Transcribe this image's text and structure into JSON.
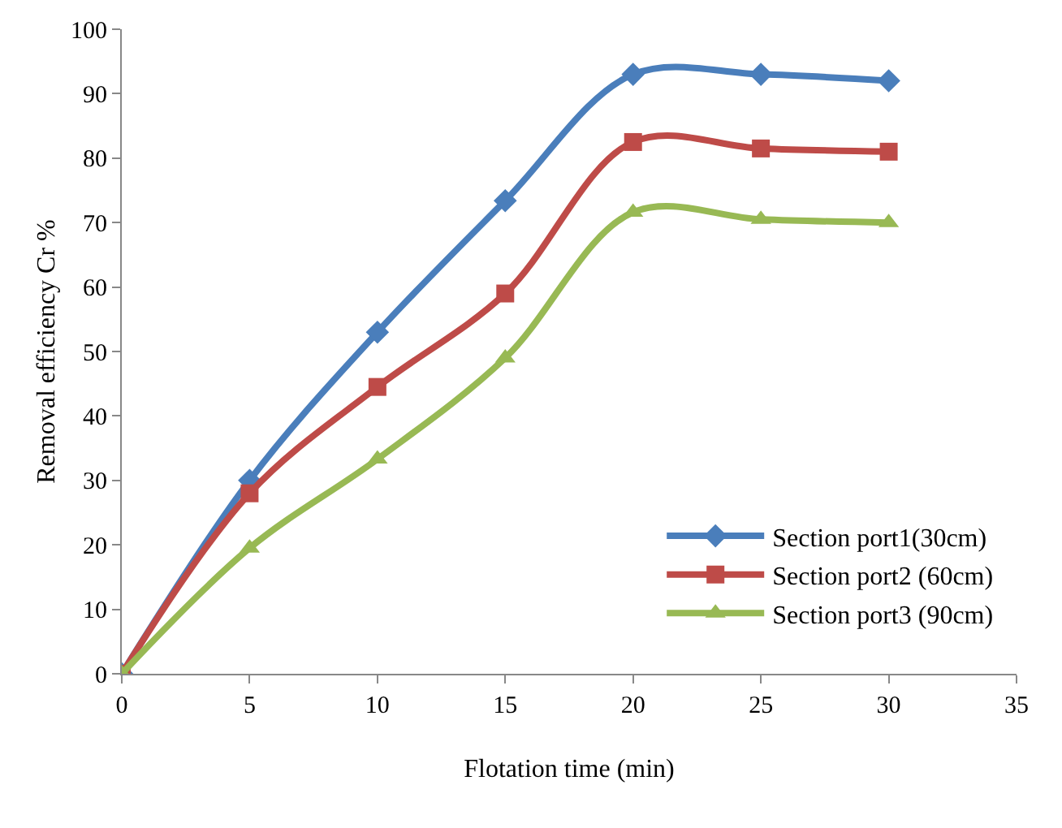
{
  "chart_data": {
    "type": "line",
    "xlabel": "Flotation time (min)",
    "ylabel": "Removal efficiency Cr %",
    "x": [
      0,
      5,
      10,
      15,
      20,
      25,
      30
    ],
    "series": [
      {
        "name": "Section port1(30cm)",
        "color": "#4a7ebb",
        "marker": "diamond",
        "values": [
          0,
          30,
          53,
          73.4,
          93,
          93,
          92
        ]
      },
      {
        "name": "Section port2 (60cm)",
        "color": "#be4b48",
        "marker": "square",
        "values": [
          0,
          28,
          44.5,
          59,
          82.5,
          81.5,
          81
        ]
      },
      {
        "name": "Section port3 (90cm)",
        "color": "#98b954",
        "marker": "triangle",
        "values": [
          0,
          19.5,
          33.3,
          49,
          71.6,
          70.5,
          70
        ]
      }
    ],
    "xlim": [
      0,
      35
    ],
    "xticks": [
      0,
      5,
      10,
      15,
      20,
      25,
      30,
      35
    ],
    "ylim": [
      0,
      100
    ],
    "yticks": [
      0,
      10,
      20,
      30,
      40,
      50,
      60,
      70,
      80,
      90,
      100
    ],
    "legend": "bottom right"
  }
}
